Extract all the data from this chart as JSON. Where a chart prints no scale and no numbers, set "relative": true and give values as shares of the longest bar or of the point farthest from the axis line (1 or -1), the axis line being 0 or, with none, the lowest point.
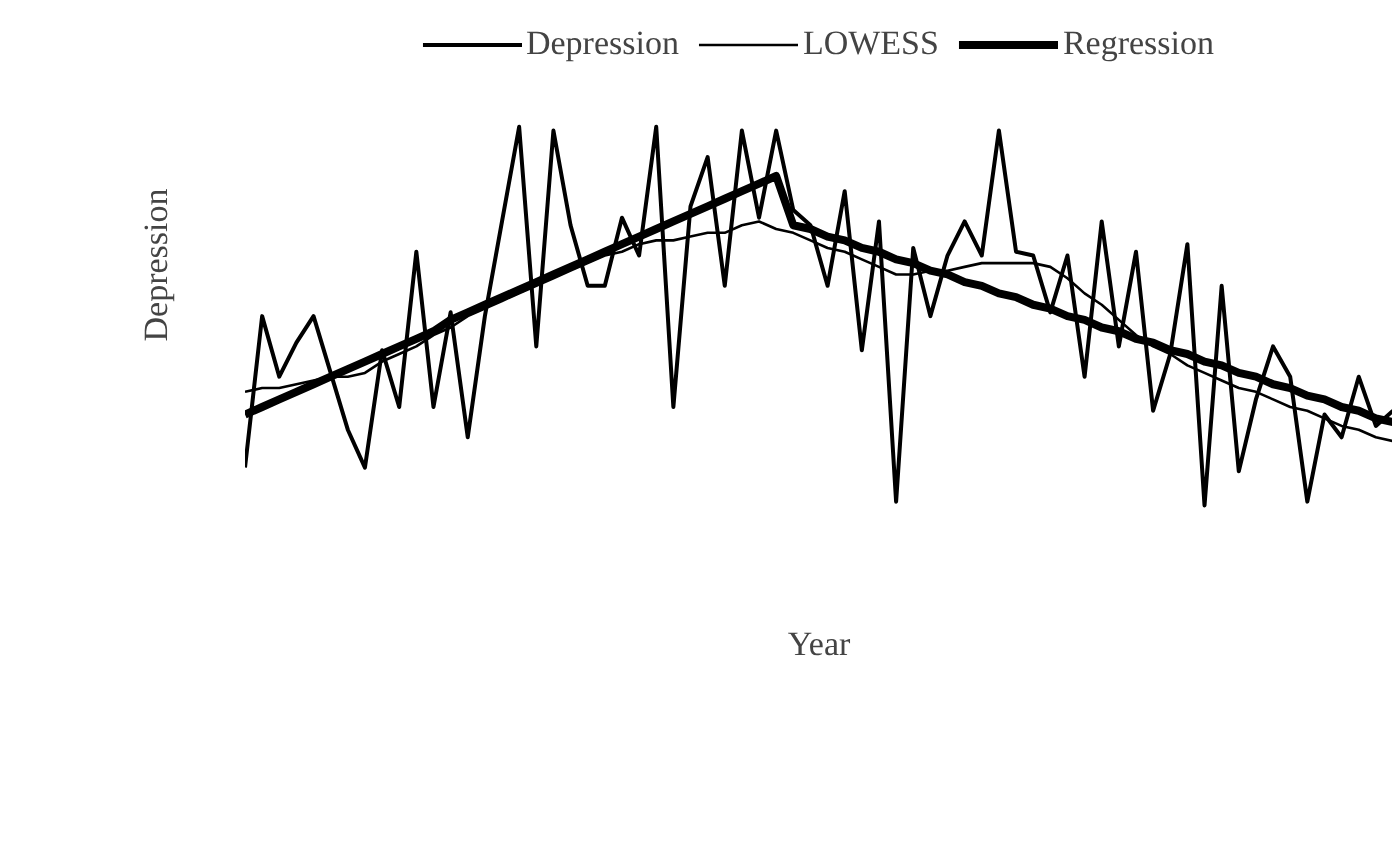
{
  "chart_data": {
    "type": "line",
    "xlabel": "Year",
    "ylabel": "Depression",
    "relative": true,
    "legend": "top",
    "categories": [
      null,
      null,
      null,
      null,
      null,
      null,
      null,
      null,
      null,
      null,
      null,
      null,
      null,
      null,
      null,
      null,
      null,
      null,
      null,
      null,
      null,
      null,
      null,
      null,
      null,
      null,
      null,
      null,
      null,
      null,
      null,
      null,
      null,
      null,
      null,
      null,
      null,
      null,
      null,
      null,
      null,
      null,
      null,
      null,
      null,
      null,
      null,
      null,
      null,
      null,
      null,
      null,
      null,
      null,
      null,
      null,
      null,
      null,
      null,
      null,
      null,
      null,
      null,
      null,
      null,
      null,
      null,
      null
    ],
    "series": [
      {
        "name": "Depression",
        "color": "#000000",
        "values": [
          0.1,
          0.5,
          0.34,
          0.43,
          0.5,
          0.35,
          0.2,
          0.1,
          0.41,
          0.26,
          0.67,
          0.26,
          0.51,
          0.18,
          0.5,
          0.75,
          1.0,
          0.42,
          0.99,
          0.74,
          0.58,
          0.58,
          0.76,
          0.66,
          1.0,
          0.26,
          0.79,
          0.92,
          0.58,
          0.99,
          0.76,
          0.99,
          0.78,
          0.74,
          0.58,
          0.83,
          0.41,
          0.75,
          0.01,
          0.68,
          0.5,
          0.66,
          0.75,
          0.66,
          0.99,
          0.67,
          0.66,
          0.51,
          0.66,
          0.34,
          0.75,
          0.42,
          0.67,
          0.25,
          0.4,
          0.69,
          0,
          0.58,
          0.09,
          0.28,
          0.42,
          0.34,
          0.01,
          0.24,
          0.18,
          0.34,
          0.21,
          0.25
        ]
      },
      {
        "name": "LOWESS",
        "color": "#000000",
        "values": [
          0.3,
          0.31,
          0.31,
          0.32,
          0.33,
          0.34,
          0.34,
          0.35,
          0.38,
          0.4,
          0.42,
          0.45,
          0.47,
          0.5,
          0.52,
          0.54,
          0.56,
          0.58,
          0.6,
          0.62,
          0.64,
          0.66,
          0.67,
          0.69,
          0.7,
          0.7,
          0.71,
          0.72,
          0.72,
          0.74,
          0.75,
          0.73,
          0.72,
          0.7,
          0.68,
          0.67,
          0.65,
          0.63,
          0.61,
          0.61,
          0.62,
          0.62,
          0.63,
          0.64,
          0.64,
          0.64,
          0.64,
          0.63,
          0.6,
          0.56,
          0.53,
          0.49,
          0.45,
          0.42,
          0.4,
          0.37,
          0.35,
          0.33,
          0.31,
          0.3,
          0.28,
          0.26,
          0.25,
          0.23,
          0.21,
          0.2,
          0.18,
          0.17
        ]
      },
      {
        "name": "Regression",
        "color": "#000000",
        "values": [
          0.24,
          0.26,
          0.28,
          0.3,
          0.32,
          0.34,
          0.36,
          0.38,
          0.4,
          0.42,
          0.44,
          0.46,
          0.49,
          0.51,
          0.53,
          0.55,
          0.57,
          0.59,
          0.61,
          0.63,
          0.65,
          0.67,
          0.69,
          0.71,
          0.73,
          0.75,
          0.77,
          0.79,
          0.81,
          0.83,
          0.85,
          0.87,
          0.74,
          0.73,
          0.71,
          0.7,
          0.68,
          0.67,
          0.65,
          0.64,
          0.62,
          0.61,
          0.59,
          0.58,
          0.56,
          0.55,
          0.53,
          0.52,
          0.5,
          0.49,
          0.47,
          0.46,
          0.44,
          0.43,
          0.41,
          0.4,
          0.38,
          0.37,
          0.35,
          0.34,
          0.32,
          0.31,
          0.29,
          0.28,
          0.26,
          0.25,
          0.23,
          0.22
        ]
      }
    ]
  }
}
